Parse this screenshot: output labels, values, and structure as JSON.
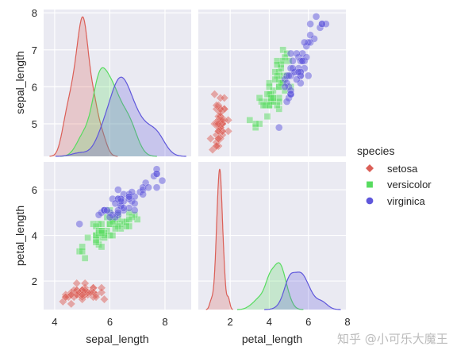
{
  "chart_data": {
    "type": "pairplot",
    "variables": [
      "sepal_length",
      "petal_length"
    ],
    "axis_labels": {
      "sepal_length": "sepal_length",
      "petal_length": "petal_length"
    },
    "x_ranges": {
      "sepal_length": [
        3.6,
        8.95
      ],
      "petal_length": [
        0.37,
        7.92
      ]
    },
    "y_ranges": {
      "sepal_length": [
        4.12,
        8.09
      ],
      "petal_length": [
        0.75,
        7.22
      ]
    },
    "x_ticks": {
      "sepal_length": [
        4,
        6,
        8
      ],
      "petal_length": [
        2,
        4,
        6,
        8
      ]
    },
    "y_ticks": {
      "sepal_length": [
        5,
        6,
        7,
        8
      ],
      "petal_length": [
        2,
        4,
        6
      ]
    },
    "grid": true,
    "diag_kind": "kde",
    "legend": {
      "title": "species",
      "placement": "right"
    },
    "series": [
      {
        "name": "setosa",
        "color": "#db5f57",
        "marker": "diamond",
        "sepal_length": [
          5.1,
          4.9,
          4.7,
          4.6,
          5.0,
          5.4,
          4.6,
          5.0,
          4.4,
          4.9,
          5.4,
          4.8,
          4.8,
          4.3,
          5.8,
          5.7,
          5.4,
          5.1,
          5.7,
          5.1,
          5.4,
          5.1,
          4.6,
          5.1,
          4.8,
          5.0,
          5.0,
          5.2,
          5.2,
          4.7,
          4.8,
          5.4,
          5.2,
          5.5,
          4.9,
          5.0,
          5.5,
          4.9,
          4.4,
          5.1,
          5.0,
          4.5,
          4.4,
          5.0,
          5.1,
          4.8,
          5.1,
          4.6,
          5.3,
          5.0
        ],
        "petal_length": [
          1.4,
          1.4,
          1.3,
          1.5,
          1.4,
          1.7,
          1.4,
          1.5,
          1.4,
          1.5,
          1.5,
          1.6,
          1.4,
          1.1,
          1.2,
          1.5,
          1.3,
          1.4,
          1.7,
          1.5,
          1.7,
          1.5,
          1.0,
          1.7,
          1.9,
          1.6,
          1.6,
          1.5,
          1.4,
          1.6,
          1.6,
          1.5,
          1.5,
          1.4,
          1.5,
          1.2,
          1.3,
          1.5,
          1.3,
          1.5,
          1.3,
          1.3,
          1.3,
          1.6,
          1.9,
          1.4,
          1.6,
          1.4,
          1.5,
          1.4
        ]
      },
      {
        "name": "versicolor",
        "color": "#57db5f",
        "marker": "square",
        "sepal_length": [
          7.0,
          6.4,
          6.9,
          5.5,
          6.5,
          5.7,
          6.3,
          4.9,
          6.6,
          5.2,
          5.0,
          5.9,
          6.0,
          6.1,
          5.6,
          6.7,
          5.6,
          5.8,
          6.2,
          5.6,
          5.9,
          6.1,
          6.3,
          6.1,
          6.4,
          6.6,
          6.8,
          6.7,
          6.0,
          5.7,
          5.5,
          5.5,
          5.8,
          6.0,
          5.4,
          6.0,
          6.7,
          6.3,
          5.6,
          5.5,
          5.5,
          6.1,
          5.8,
          5.0,
          5.6,
          5.7,
          5.7,
          6.2,
          5.1,
          5.7
        ],
        "petal_length": [
          4.7,
          4.5,
          4.9,
          4.0,
          4.6,
          4.5,
          4.7,
          3.3,
          4.6,
          3.9,
          3.5,
          4.2,
          4.0,
          4.7,
          3.6,
          4.4,
          4.5,
          4.1,
          4.5,
          3.9,
          4.8,
          4.0,
          4.9,
          4.7,
          4.3,
          4.4,
          4.8,
          5.0,
          4.5,
          3.5,
          3.8,
          3.7,
          3.9,
          5.1,
          4.5,
          4.5,
          4.7,
          4.4,
          4.1,
          4.0,
          4.4,
          4.6,
          4.0,
          3.3,
          4.2,
          4.2,
          4.2,
          4.3,
          3.0,
          4.1
        ]
      },
      {
        "name": "virginica",
        "color": "#5f57db",
        "marker": "circle",
        "sepal_length": [
          6.3,
          5.8,
          7.1,
          6.3,
          6.5,
          7.6,
          4.9,
          7.3,
          6.7,
          7.2,
          6.5,
          6.4,
          6.8,
          5.7,
          5.8,
          6.4,
          6.5,
          7.7,
          7.7,
          6.0,
          6.9,
          5.6,
          7.7,
          6.3,
          6.7,
          7.2,
          6.2,
          6.1,
          6.4,
          7.2,
          7.4,
          7.9,
          6.4,
          6.3,
          6.1,
          7.7,
          6.3,
          6.4,
          6.0,
          6.9,
          6.7,
          6.9,
          5.8,
          6.8,
          6.7,
          6.7,
          6.3,
          6.5,
          6.2,
          5.9
        ],
        "petal_length": [
          6.0,
          5.1,
          5.9,
          5.6,
          5.8,
          6.6,
          4.5,
          6.3,
          5.8,
          6.1,
          5.1,
          5.3,
          5.5,
          5.0,
          5.1,
          5.3,
          5.5,
          6.7,
          6.9,
          5.0,
          5.7,
          4.9,
          6.7,
          4.9,
          5.7,
          6.0,
          4.8,
          4.9,
          5.6,
          5.8,
          6.1,
          6.4,
          5.6,
          5.1,
          5.6,
          6.1,
          5.6,
          5.5,
          4.8,
          5.4,
          5.6,
          5.1,
          5.1,
          5.9,
          5.7,
          5.2,
          5.0,
          5.2,
          5.4,
          5.1
        ]
      }
    ]
  },
  "watermark": "知乎 @小可乐大魔王"
}
